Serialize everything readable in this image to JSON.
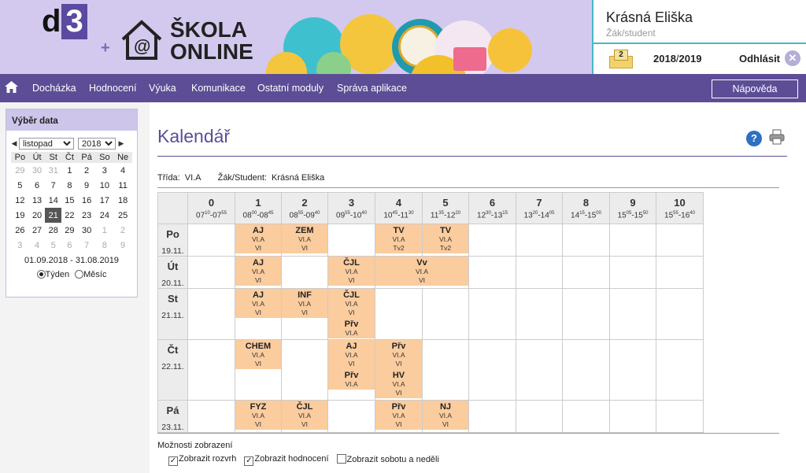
{
  "brand": {
    "d_letter": "d",
    "three": "3",
    "plus": "+",
    "skola": "ŠKOLA",
    "online": "ONLINE"
  },
  "user": {
    "name": "Krásná Eliška",
    "role": "Žák/student"
  },
  "header": {
    "messages_count": "2",
    "year_from": "2018",
    "year_sep": "/",
    "year_to": "2019",
    "logout": "Odhlásit"
  },
  "nav": {
    "items": [
      "Docházka",
      "Hodnocení",
      "Výuka",
      "Komunikace",
      "Ostatní moduly",
      "Správa aplikace"
    ],
    "help": "Nápověda"
  },
  "calendar": {
    "title": "Výběr data",
    "month": "listopad",
    "year": "2018",
    "weekdays": [
      "Po",
      "Út",
      "St",
      "Čt",
      "Pá",
      "So",
      "Ne"
    ],
    "weeks": [
      [
        "29",
        "30",
        "31",
        "1",
        "2",
        "3",
        "4"
      ],
      [
        "5",
        "6",
        "7",
        "8",
        "9",
        "10",
        "11"
      ],
      [
        "12",
        "13",
        "14",
        "15",
        "16",
        "17",
        "18"
      ],
      [
        "19",
        "20",
        "21",
        "22",
        "23",
        "24",
        "25"
      ],
      [
        "26",
        "27",
        "28",
        "29",
        "30",
        "1",
        "2"
      ],
      [
        "3",
        "4",
        "5",
        "6",
        "7",
        "8",
        "9"
      ]
    ],
    "selected": "21",
    "range": "01.09.2018 - 31.08.2019",
    "view_week": "Týden",
    "view_month": "Měsíc"
  },
  "page": {
    "title": "Kalendář",
    "class_label": "Třída:",
    "class_value": "VI.A",
    "student_label": "Žák/Student:",
    "student_value": "Krásná Eliška"
  },
  "timetable": {
    "periods": [
      {
        "n": "0",
        "from": [
          "07",
          "10"
        ],
        "to": [
          "07",
          "55"
        ]
      },
      {
        "n": "1",
        "from": [
          "08",
          "00"
        ],
        "to": [
          "08",
          "45"
        ]
      },
      {
        "n": "2",
        "from": [
          "08",
          "55"
        ],
        "to": [
          "09",
          "40"
        ]
      },
      {
        "n": "3",
        "from": [
          "09",
          "55"
        ],
        "to": [
          "10",
          "40"
        ]
      },
      {
        "n": "4",
        "from": [
          "10",
          "45"
        ],
        "to": [
          "11",
          "30"
        ]
      },
      {
        "n": "5",
        "from": [
          "11",
          "35"
        ],
        "to": [
          "12",
          "20"
        ]
      },
      {
        "n": "6",
        "from": [
          "12",
          "30"
        ],
        "to": [
          "13",
          "15"
        ]
      },
      {
        "n": "7",
        "from": [
          "13",
          "20"
        ],
        "to": [
          "14",
          "05"
        ]
      },
      {
        "n": "8",
        "from": [
          "14",
          "15"
        ],
        "to": [
          "15",
          "00"
        ]
      },
      {
        "n": "9",
        "from": [
          "15",
          "05"
        ],
        "to": [
          "15",
          "50"
        ]
      },
      {
        "n": "10",
        "from": [
          "15",
          "55"
        ],
        "to": [
          "16",
          "40"
        ]
      }
    ],
    "days": [
      {
        "name": "Po",
        "date": "19.11.",
        "cells": [
          {
            "span": 1
          },
          {
            "span": 1,
            "lessons": [
              {
                "s": "AJ",
                "l": [
                  "VI.A",
                  "VI"
                ]
              }
            ]
          },
          {
            "span": 1,
            "lessons": [
              {
                "s": "ZEM",
                "l": [
                  "VI.A",
                  "VI"
                ]
              }
            ]
          },
          {
            "span": 1
          },
          {
            "span": 1,
            "lessons": [
              {
                "s": "TV",
                "l": [
                  "VI.A",
                  "Tv2"
                ]
              }
            ]
          },
          {
            "span": 1,
            "lessons": [
              {
                "s": "TV",
                "l": [
                  "VI.A",
                  "Tv2"
                ]
              }
            ]
          },
          {
            "span": 1
          },
          {
            "span": 1
          },
          {
            "span": 1
          },
          {
            "span": 1
          },
          {
            "span": 1
          }
        ]
      },
      {
        "name": "Út",
        "date": "20.11.",
        "cells": [
          {
            "span": 1
          },
          {
            "span": 1,
            "lessons": [
              {
                "s": "AJ",
                "l": [
                  "VI.A",
                  "VI"
                ]
              }
            ]
          },
          {
            "span": 1
          },
          {
            "span": 1,
            "lessons": [
              {
                "s": "ČJL",
                "l": [
                  "VI.A",
                  "VI"
                ]
              }
            ]
          },
          {
            "span": 2,
            "lessons": [
              {
                "s": "Vv",
                "l": [
                  "VI.A",
                  "VI"
                ]
              }
            ]
          },
          {
            "span": 1
          },
          {
            "span": 1
          },
          {
            "span": 1
          },
          {
            "span": 1
          },
          {
            "span": 1
          }
        ]
      },
      {
        "name": "St",
        "date": "21.11.",
        "cells": [
          {
            "span": 1
          },
          {
            "span": 1,
            "lessons": [
              {
                "s": "AJ",
                "l": [
                  "VI.A",
                  "VI"
                ]
              }
            ]
          },
          {
            "span": 1,
            "lessons": [
              {
                "s": "INF",
                "l": [
                  "VI.A",
                  "VI"
                ]
              }
            ]
          },
          {
            "span": 1,
            "lessons": [
              {
                "s": "ČJL",
                "l": [
                  "VI.A",
                  "VI"
                ]
              },
              {
                "s": "Přv",
                "l": [
                  "VI.A"
                ]
              }
            ]
          },
          {
            "span": 1
          },
          {
            "span": 1
          },
          {
            "span": 1
          },
          {
            "span": 1
          },
          {
            "span": 1
          },
          {
            "span": 1
          },
          {
            "span": 1
          }
        ]
      },
      {
        "name": "Čt",
        "date": "22.11.",
        "cells": [
          {
            "span": 1
          },
          {
            "span": 1,
            "lessons": [
              {
                "s": "CHEM",
                "l": [
                  "VI.A",
                  "VI"
                ]
              }
            ]
          },
          {
            "span": 1
          },
          {
            "span": 1,
            "lessons": [
              {
                "s": "AJ",
                "l": [
                  "VI.A",
                  "VI"
                ]
              },
              {
                "s": "Přv",
                "l": [
                  "VI.A"
                ]
              }
            ]
          },
          {
            "span": 1,
            "lessons": [
              {
                "s": "Přv",
                "l": [
                  "VI.A",
                  "VI"
                ]
              },
              {
                "s": "HV",
                "l": [
                  "VI.A",
                  "VI"
                ]
              }
            ]
          },
          {
            "span": 1
          },
          {
            "span": 1
          },
          {
            "span": 1
          },
          {
            "span": 1
          },
          {
            "span": 1
          },
          {
            "span": 1
          }
        ]
      },
      {
        "name": "Pá",
        "date": "23.11.",
        "cells": [
          {
            "span": 1
          },
          {
            "span": 1,
            "lessons": [
              {
                "s": "FYZ",
                "l": [
                  "VI.A",
                  "VI"
                ]
              }
            ]
          },
          {
            "span": 1,
            "lessons": [
              {
                "s": "ČJL",
                "l": [
                  "VI.A",
                  "VI"
                ]
              }
            ]
          },
          {
            "span": 1
          },
          {
            "span": 1,
            "lessons": [
              {
                "s": "Přv",
                "l": [
                  "VI.A",
                  "VI"
                ]
              }
            ]
          },
          {
            "span": 1,
            "lessons": [
              {
                "s": "NJ",
                "l": [
                  "VI.A",
                  "VI"
                ]
              }
            ]
          },
          {
            "span": 1
          },
          {
            "span": 1
          },
          {
            "span": 1
          },
          {
            "span": 1
          },
          {
            "span": 1
          }
        ]
      }
    ]
  },
  "options": {
    "title": "Možnosti zobrazení",
    "items": [
      {
        "label": "Zobrazit rozvrh",
        "checked": true
      },
      {
        "label": "Zobrazit hodnocení",
        "checked": true
      },
      {
        "label": "Zobrazit sobotu a neděli",
        "checked": false
      }
    ]
  },
  "colors": {
    "brand_purple": "#5c4d96",
    "lesson": "#fbcc9e",
    "header_bg": "#d3c9ee",
    "accent_cyan": "#4ab7c7"
  }
}
